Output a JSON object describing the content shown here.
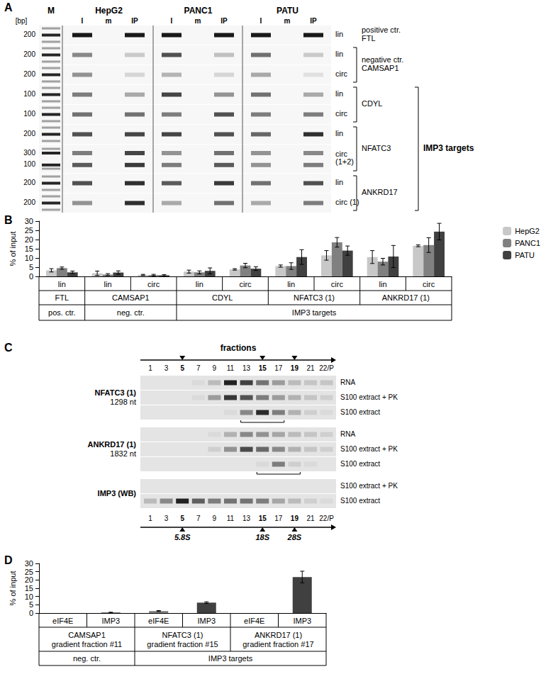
{
  "figure": {
    "A": {
      "label": "A",
      "size_header": "[bp]",
      "marker_lane": "M",
      "cell_lines": [
        "HepG2",
        "PANC1",
        "PATU"
      ],
      "lanes": [
        "I",
        "m",
        "IP"
      ],
      "rows": [
        {
          "sizes": [
            200
          ],
          "label": [
            "lin"
          ],
          "bands": [
            [
              1,
              0,
              1,
              1,
              0,
              1,
              1,
              0,
              1
            ]
          ]
        },
        {
          "sizes": [
            200
          ],
          "label": [
            "lin"
          ],
          "bands": [
            [
              0.5,
              0,
              0.2,
              0.75,
              0,
              0.25,
              0.6,
              0,
              0.2
            ]
          ]
        },
        {
          "sizes": [
            200
          ],
          "label": [
            "circ"
          ],
          "bands": [
            [
              0.45,
              0,
              0.15,
              0.3,
              0,
              0.15,
              0.35,
              0,
              0.1
            ]
          ]
        },
        {
          "sizes": [
            100
          ],
          "label": [
            "lin"
          ],
          "bands": [
            [
              0.55,
              0,
              0.35,
              0.8,
              0,
              0.45,
              0.6,
              0,
              0.35
            ]
          ]
        },
        {
          "sizes": [
            100
          ],
          "label": [
            "circ"
          ],
          "bands": [
            [
              0.6,
              0,
              0.6,
              0.55,
              0,
              0.75,
              0.55,
              0,
              0.55
            ]
          ]
        },
        {
          "sizes": [
            200
          ],
          "label": [
            "lin"
          ],
          "bands": [
            [
              0.75,
              0,
              0.8,
              0.8,
              0,
              0.75,
              0.65,
              0,
              0.9
            ]
          ]
        },
        {
          "sizes": [
            300,
            100
          ],
          "label": [
            "circ",
            "(1+2)"
          ],
          "bands": [
            [
              0.55,
              0,
              0.8,
              0.45,
              0,
              0.6,
              0.45,
              0,
              0.5
            ],
            [
              0.7,
              0,
              0.85,
              0.55,
              0,
              0.7,
              0.45,
              0,
              0.55
            ]
          ]
        },
        {
          "sizes": [
            200
          ],
          "label": [
            "lin"
          ],
          "bands": [
            [
              0.75,
              0,
              0.9,
              0.7,
              0,
              0.85,
              0.6,
              0,
              0.75
            ]
          ]
        },
        {
          "sizes": [
            200
          ],
          "label": [
            "circ (1)"
          ],
          "bands": [
            [
              0.45,
              0,
              0.9,
              0.35,
              0,
              0.6,
              0.35,
              0,
              0.55
            ]
          ]
        }
      ],
      "targets": [
        {
          "title": "positive ctr.",
          "label": "FTL",
          "rows": 1
        },
        {
          "title": "negative ctr.",
          "label": "CAMSAP1",
          "rows": 2
        },
        {
          "label": "CDYL",
          "rows": 2
        },
        {
          "label": "NFATC3",
          "rows": 2
        },
        {
          "label": "ANKRD17",
          "rows": 2
        }
      ],
      "bracket": {
        "label": "IMP3 targets",
        "targets": [
          "CDYL",
          "NFATC3",
          "ANKRD17"
        ]
      }
    },
    "C": {
      "label": "C",
      "title": "fractions",
      "fractions": [
        "1",
        "3",
        "5",
        "7",
        "9",
        "11",
        "13",
        "15",
        "17",
        "19",
        "21",
        "22/P"
      ],
      "highlight": [
        "5",
        "15",
        "19"
      ],
      "blocks": [
        {
          "name": [
            "NFATC3 (1)",
            "1298 nt"
          ],
          "rows": [
            {
              "label": "RNA",
              "bands": [
                0,
                0,
                0,
                0.05,
                0.2,
                0.95,
                0.8,
                0.55,
                0.35,
                0.2,
                0.15,
                0.15
              ]
            },
            {
              "label": "S100 extract + PK",
              "bands": [
                0,
                0,
                0,
                0.05,
                0.35,
                0.85,
                0.7,
                0.5,
                0.35,
                0.25,
                0.15,
                0.1
              ]
            },
            {
              "label": "S100 extract",
              "bands": [
                0,
                0,
                0,
                0,
                0,
                0.05,
                0.45,
                0.9,
                0.5,
                0.25,
                0.1,
                0.05
              ],
              "bracket": [
                "13",
                "17"
              ]
            }
          ]
        },
        {
          "name": [
            "ANKRD17 (1)",
            "1832 nt"
          ],
          "rows": [
            {
              "label": "RNA",
              "bands": [
                0,
                0,
                0,
                0,
                0.05,
                0.25,
                0.45,
                0.4,
                0.3,
                0.2,
                0.15,
                0.1
              ]
            },
            {
              "label": "S100 extract + PK",
              "bands": [
                0,
                0,
                0,
                0,
                0.1,
                0.4,
                0.75,
                0.6,
                0.45,
                0.25,
                0.15,
                0.1
              ]
            },
            {
              "label": "S100 extract",
              "bands": [
                0,
                0,
                0,
                0,
                0,
                0,
                0,
                0.05,
                0.5,
                0.1,
                0.05,
                0
              ],
              "bracket": [
                "15",
                "19"
              ]
            }
          ]
        },
        {
          "name": [
            "IMP3 (WB)"
          ],
          "rows": [
            {
              "label": "S100 extract + PK",
              "bands": [
                0,
                0,
                0,
                0,
                0,
                0,
                0,
                0,
                0,
                0,
                0,
                0
              ]
            },
            {
              "label": "S100 extract",
              "bands": [
                0.2,
                0.45,
                0.95,
                0.65,
                0.5,
                0.55,
                0.55,
                0.5,
                0.3,
                0.2,
                0.1,
                0.05
              ]
            }
          ]
        }
      ],
      "markers": [
        {
          "fraction": "5",
          "label": "5.8S"
        },
        {
          "fraction": "15",
          "label": "18S"
        },
        {
          "fraction": "19",
          "label": "28S"
        }
      ]
    }
  },
  "chart_data": [
    {
      "label": "B",
      "type": "bar",
      "y_label": "% of input",
      "categories": [
        "lin",
        "lin",
        "circ",
        "lin",
        "circ",
        "lin",
        "circ",
        "lin",
        "circ"
      ],
      "category_groups": [
        {
          "label": [
            "FTL"
          ],
          "count": 1
        },
        {
          "label": [
            "CAMSAP1"
          ],
          "count": 2
        },
        {
          "label": [
            "CDYL"
          ],
          "count": 2
        },
        {
          "label": [
            "NFATC3 (1)"
          ],
          "count": 2
        },
        {
          "label": [
            "ANKRD17 (1)"
          ],
          "count": 2
        }
      ],
      "category_classes": [
        {
          "label": "pos. ctr.",
          "count": 1
        },
        {
          "label": "neg. ctr.",
          "count": 2
        },
        {
          "label": "IMP3 targets",
          "count": 6
        }
      ],
      "series": [
        {
          "name": "HepG2",
          "color": "#c8c8c8",
          "values": [
            3.3,
            1.7,
            0.8,
            2.6,
            3.8,
            5.6,
            11.4,
            10.5,
            16.6
          ],
          "errors": [
            0.9,
            1.2,
            0.3,
            0.8,
            0.4,
            0.6,
            2.6,
            3.5,
            0.5
          ]
        },
        {
          "name": "PANC1",
          "color": "#808080",
          "values": [
            4.5,
            1.0,
            0.7,
            2.2,
            5.9,
            5.6,
            18.5,
            8.0,
            17.0
          ],
          "errors": [
            0.6,
            0.5,
            0.4,
            0.8,
            1.2,
            1.8,
            2.6,
            1.8,
            4.0
          ]
        },
        {
          "name": "PATU",
          "color": "#404040",
          "values": [
            2.2,
            2.1,
            0.6,
            3.0,
            4.2,
            10.5,
            14.0,
            10.8,
            24.3
          ],
          "errors": [
            0.7,
            0.9,
            0.4,
            1.6,
            1.0,
            4.0,
            2.5,
            6.0,
            4.5
          ]
        }
      ],
      "ylim": [
        0,
        30
      ],
      "yticks": [
        0,
        5,
        10,
        15,
        20,
        25,
        30
      ],
      "grid": false,
      "legend": "right"
    },
    {
      "label": "D",
      "type": "bar",
      "y_label": "% of input",
      "categories": [
        "eIF4E",
        "IMP3",
        "eIF4E",
        "IMP3",
        "eIF4E",
        "IMP3"
      ],
      "category_groups": [
        {
          "label": [
            "CAMSAP1",
            "gradient fraction #11"
          ],
          "count": 2
        },
        {
          "label": [
            "NFATC3 (1)",
            "gradient fraction #15"
          ],
          "count": 2
        },
        {
          "label": [
            "ANKRD17 (1)",
            "gradient fraction #17"
          ],
          "count": 2
        }
      ],
      "category_classes": [
        {
          "label": "neg. ctr.",
          "count": 2
        },
        {
          "label": "IMP3 targets",
          "count": 4
        }
      ],
      "values": [
        0,
        0.3,
        1.2,
        6.3,
        0,
        21.8
      ],
      "errors": [
        0,
        0.2,
        0.3,
        0.5,
        0,
        3.5
      ],
      "colors": [
        "#7f7f7f",
        "#404040",
        "#7f7f7f",
        "#404040",
        "#7f7f7f",
        "#404040"
      ],
      "ylim": [
        0,
        30
      ],
      "yticks": [
        0,
        5,
        10,
        15,
        20,
        25,
        30
      ],
      "grid": false
    }
  ]
}
